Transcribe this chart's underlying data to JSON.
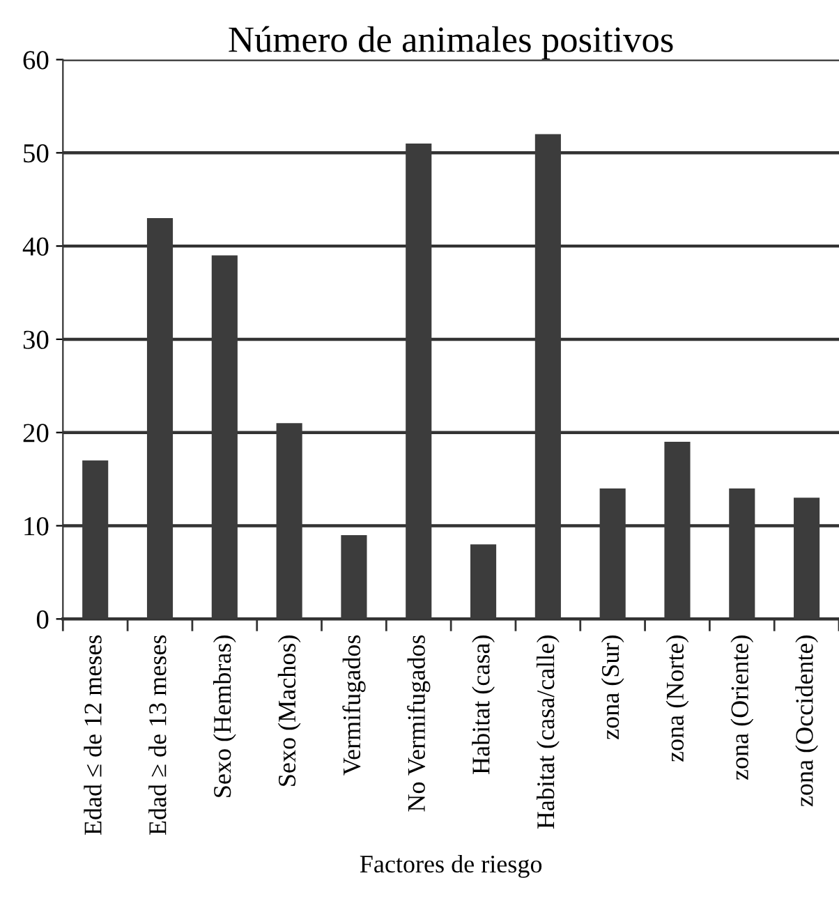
{
  "chart_data": {
    "type": "bar",
    "title": "Número de animales positivos",
    "xlabel": "Factores de riesgo",
    "categories": [
      "Edad ≤ de 12 meses",
      "Edad ≥ de 13 meses",
      "Sexo (Hembras)",
      "Sexo (Machos)",
      "Vermifugados",
      "No Vermifugados",
      "Habitat (casa)",
      "Habitat (casa/calle)",
      "zona (Sur)",
      "zona (Norte)",
      "zona (Oriente)",
      "zona (Occidente)"
    ],
    "values": [
      17,
      43,
      39,
      21,
      9,
      51,
      8,
      52,
      14,
      19,
      14,
      13
    ],
    "color": "#3c3c3c",
    "ylim": [
      0,
      60
    ],
    "yticks": [
      0,
      10,
      20,
      30,
      40,
      50,
      60
    ],
    "grid": "y",
    "legend": false
  }
}
